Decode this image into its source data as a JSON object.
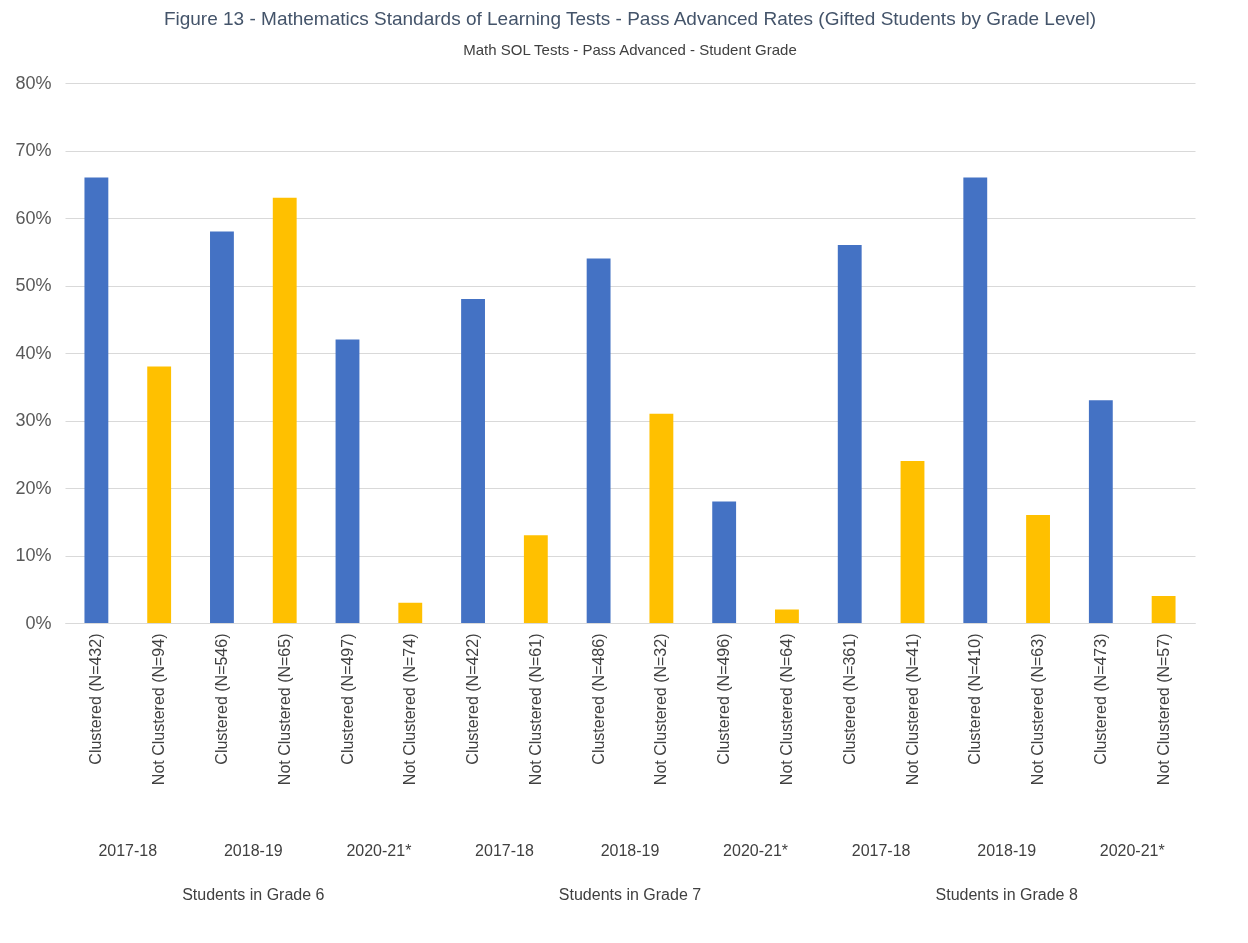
{
  "chart_data": {
    "type": "bar",
    "title": "Figure 13 - Mathematics Standards of Learning Tests - Pass Advanced Rates (Gifted Students by Grade Level)",
    "subtitle": "Math SOL Tests - Pass Advanced - Student Grade",
    "categories": [
      "Clustered (N=432)",
      "Not Clustered (N=94)",
      "Clustered (N=546)",
      "Not Clustered (N=65)",
      "Clustered (N=497)",
      "Not Clustered (N=74)",
      "Clustered (N=422)",
      "Not Clustered (N=61)",
      "Clustered (N=486)",
      "Not Clustered (N=32)",
      "Clustered (N=496)",
      "Not Clustered (N=64)",
      "Clustered (N=361)",
      "Not Clustered (N=41)",
      "Clustered (N=410)",
      "Not Clustered (N=63)",
      "Clustered (N=473)",
      "Not Clustered (N=57)"
    ],
    "values": [
      66,
      38,
      58,
      63,
      42,
      3,
      48,
      13,
      54,
      31,
      18,
      2,
      56,
      24,
      66,
      16,
      33,
      4
    ],
    "colors": [
      "#4472c4",
      "#ffc000",
      "#4472c4",
      "#ffc000",
      "#4472c4",
      "#ffc000",
      "#4472c4",
      "#ffc000",
      "#4472c4",
      "#ffc000",
      "#4472c4",
      "#ffc000",
      "#4472c4",
      "#ffc000",
      "#4472c4",
      "#ffc000",
      "#4472c4",
      "#ffc000"
    ],
    "ylim": [
      0,
      80
    ],
    "yticks": [
      {
        "value": 0,
        "label": "0%"
      },
      {
        "value": 10,
        "label": "10%"
      },
      {
        "value": 20,
        "label": "20%"
      },
      {
        "value": 30,
        "label": "30%"
      },
      {
        "value": 40,
        "label": "40%"
      },
      {
        "value": 50,
        "label": "50%"
      },
      {
        "value": 60,
        "label": "60%"
      },
      {
        "value": 70,
        "label": "70%"
      },
      {
        "value": 80,
        "label": "80%"
      }
    ],
    "grid": "y",
    "annotations": [
      "2017-18",
      "2018-19",
      "2020-21*",
      "2017-18",
      "2018-19",
      "2020-21*",
      "2017-18",
      "2018-19",
      "2020-21*",
      "Students in Grade 6",
      "Students in Grade 7",
      "Students in Grade 8"
    ]
  }
}
